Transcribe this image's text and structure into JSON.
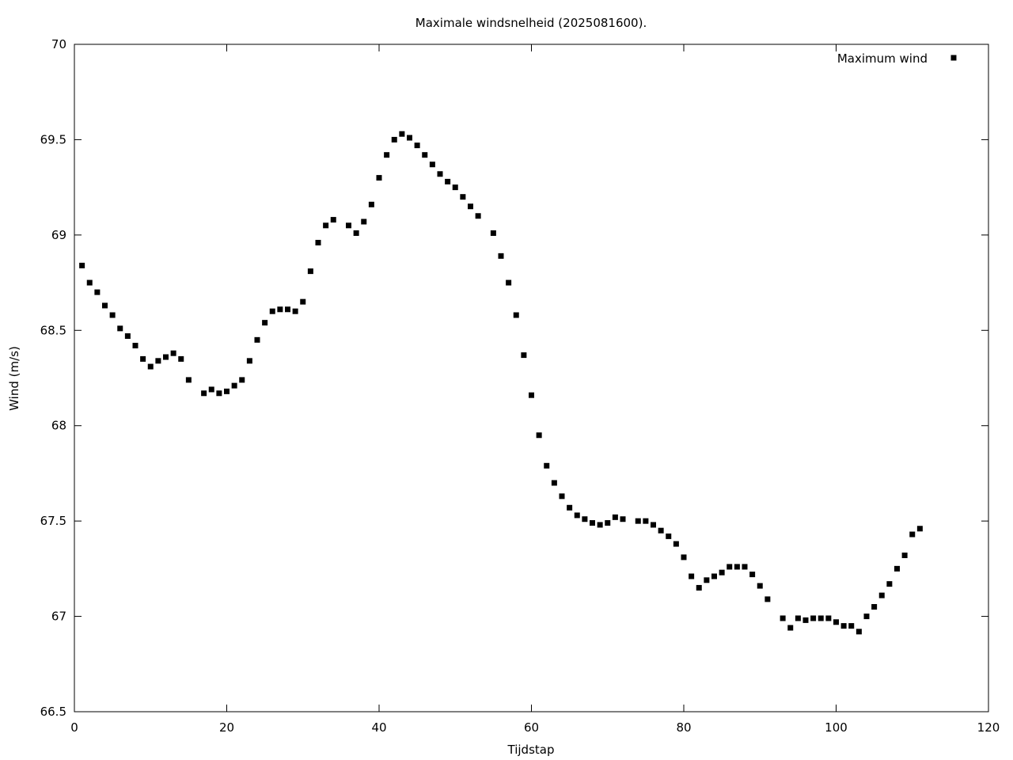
{
  "chart_data": {
    "type": "scatter",
    "title": "Maximale windsnelheid (2025081600).",
    "xlabel": "Tijdstap",
    "ylabel": "Wind (m/s)",
    "xlim": [
      0,
      120
    ],
    "ylim": [
      66.5,
      70
    ],
    "xticks": [
      "0",
      "20",
      "40",
      "60",
      "80",
      "100",
      "120"
    ],
    "yticks": [
      "66.5",
      "67",
      "67.5",
      "68",
      "68.5",
      "69",
      "69.5",
      "70"
    ],
    "grid": false,
    "legend_position": "top-right",
    "series": [
      {
        "name": "Maximum wind",
        "marker": "square",
        "color": "#000000",
        "points": [
          [
            1,
            68.84
          ],
          [
            2,
            68.75
          ],
          [
            3,
            68.7
          ],
          [
            4,
            68.63
          ],
          [
            5,
            68.58
          ],
          [
            6,
            68.51
          ],
          [
            7,
            68.47
          ],
          [
            8,
            68.42
          ],
          [
            9,
            68.35
          ],
          [
            10,
            68.31
          ],
          [
            11,
            68.34
          ],
          [
            12,
            68.36
          ],
          [
            13,
            68.38
          ],
          [
            14,
            68.35
          ],
          [
            15,
            68.24
          ],
          [
            17,
            68.17
          ],
          [
            18,
            68.19
          ],
          [
            19,
            68.17
          ],
          [
            20,
            68.18
          ],
          [
            21,
            68.21
          ],
          [
            22,
            68.24
          ],
          [
            23,
            68.34
          ],
          [
            24,
            68.45
          ],
          [
            25,
            68.54
          ],
          [
            26,
            68.6
          ],
          [
            27,
            68.61
          ],
          [
            28,
            68.61
          ],
          [
            29,
            68.6
          ],
          [
            30,
            68.65
          ],
          [
            31,
            68.81
          ],
          [
            32,
            68.96
          ],
          [
            33,
            69.05
          ],
          [
            34,
            69.08
          ],
          [
            36,
            69.05
          ],
          [
            37,
            69.01
          ],
          [
            38,
            69.07
          ],
          [
            39,
            69.16
          ],
          [
            40,
            69.3
          ],
          [
            41,
            69.42
          ],
          [
            42,
            69.5
          ],
          [
            43,
            69.53
          ],
          [
            44,
            69.51
          ],
          [
            45,
            69.47
          ],
          [
            46,
            69.42
          ],
          [
            47,
            69.37
          ],
          [
            48,
            69.32
          ],
          [
            49,
            69.28
          ],
          [
            50,
            69.25
          ],
          [
            51,
            69.2
          ],
          [
            52,
            69.15
          ],
          [
            53,
            69.1
          ],
          [
            55,
            69.01
          ],
          [
            56,
            68.89
          ],
          [
            57,
            68.75
          ],
          [
            58,
            68.58
          ],
          [
            59,
            68.37
          ],
          [
            60,
            68.16
          ],
          [
            61,
            67.95
          ],
          [
            62,
            67.79
          ],
          [
            63,
            67.7
          ],
          [
            64,
            67.63
          ],
          [
            65,
            67.57
          ],
          [
            66,
            67.53
          ],
          [
            67,
            67.51
          ],
          [
            68,
            67.49
          ],
          [
            69,
            67.48
          ],
          [
            70,
            67.49
          ],
          [
            71,
            67.52
          ],
          [
            72,
            67.51
          ],
          [
            74,
            67.5
          ],
          [
            75,
            67.5
          ],
          [
            76,
            67.48
          ],
          [
            77,
            67.45
          ],
          [
            78,
            67.42
          ],
          [
            79,
            67.38
          ],
          [
            80,
            67.31
          ],
          [
            81,
            67.21
          ],
          [
            82,
            67.15
          ],
          [
            83,
            67.19
          ],
          [
            84,
            67.21
          ],
          [
            85,
            67.23
          ],
          [
            86,
            67.26
          ],
          [
            87,
            67.26
          ],
          [
            88,
            67.26
          ],
          [
            89,
            67.22
          ],
          [
            90,
            67.16
          ],
          [
            91,
            67.09
          ],
          [
            93,
            66.99
          ],
          [
            94,
            66.94
          ],
          [
            95,
            66.99
          ],
          [
            96,
            66.98
          ],
          [
            97,
            66.99
          ],
          [
            98,
            66.99
          ],
          [
            99,
            66.99
          ],
          [
            100,
            66.97
          ],
          [
            101,
            66.95
          ],
          [
            102,
            66.95
          ],
          [
            103,
            66.92
          ],
          [
            104,
            67.0
          ],
          [
            105,
            67.05
          ],
          [
            106,
            67.11
          ],
          [
            107,
            67.17
          ],
          [
            108,
            67.25
          ],
          [
            109,
            67.32
          ],
          [
            110,
            67.43
          ],
          [
            111,
            67.46
          ]
        ]
      }
    ]
  }
}
